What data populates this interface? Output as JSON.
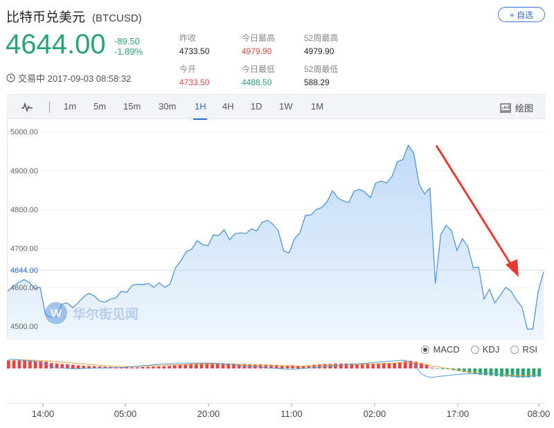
{
  "header": {
    "name": "比特币兑美元",
    "symbol": "(BTCUSD)",
    "add_button": "+ 自选"
  },
  "quote": {
    "price": "4644.00",
    "change": "-89.50",
    "change_pct": "-1.89%"
  },
  "stats": [
    {
      "label": "昨收",
      "value": "4733.50",
      "tone": "dark"
    },
    {
      "label": "今日最高",
      "value": "4979.90",
      "tone": "red"
    },
    {
      "label": "52周最高",
      "value": "4979.90",
      "tone": "dark"
    },
    {
      "label": "今开",
      "value": "4733.50",
      "tone": "red"
    },
    {
      "label": "今日最低",
      "value": "4488.50",
      "tone": "green"
    },
    {
      "label": "52周最低",
      "value": "588.29",
      "tone": "dark"
    }
  ],
  "status": {
    "text": "交易中 2017-09-03 08:58:32"
  },
  "toolbar": {
    "tabs": [
      "1m",
      "5m",
      "15m",
      "30m",
      "1H",
      "4H",
      "1D",
      "1W",
      "1M"
    ],
    "active": "1H",
    "draw_label": "绘图"
  },
  "indicators": {
    "options": [
      "MACD",
      "KDJ",
      "RSI"
    ],
    "selected": "MACD"
  },
  "watermark": "华尔街见闻",
  "colors": {
    "line": "#3f8fdc",
    "up": "#e94444",
    "down": "#27a673",
    "price": "#27a673",
    "arrow": "#e83a30"
  },
  "chart_data": {
    "type": "area",
    "ylim": [
      4470,
      5025
    ],
    "y_ticks": [
      "5000.00",
      "4900.00",
      "4800.00",
      "4700.00",
      "4600.00",
      "4500.00"
    ],
    "current_price_label": "4644.00",
    "x_ticks": [
      "14:00",
      "05:00",
      "20:00",
      "11:00",
      "02:00",
      "17:00",
      "08:00"
    ],
    "values": [
      4590,
      4602,
      4612,
      4620,
      4613,
      4597,
      4600,
      4530,
      4523,
      4524,
      4557,
      4560,
      4548,
      4560,
      4575,
      4585,
      4578,
      4565,
      4562,
      4570,
      4573,
      4590,
      4587,
      4605,
      4608,
      4607,
      4610,
      4600,
      4612,
      4600,
      4608,
      4650,
      4668,
      4692,
      4698,
      4720,
      4710,
      4707,
      4735,
      4733,
      4748,
      4722,
      4738,
      4740,
      4738,
      4750,
      4745,
      4767,
      4772,
      4762,
      4745,
      4693,
      4688,
      4725,
      4740,
      4785,
      4786,
      4800,
      4805,
      4820,
      4848,
      4830,
      4822,
      4818,
      4847,
      4852,
      4845,
      4830,
      4868,
      4873,
      4868,
      4885,
      4923,
      4928,
      4965,
      4945,
      4865,
      4840,
      4855,
      4610,
      4735,
      4760,
      4745,
      4695,
      4725,
      4705,
      4650,
      4652,
      4570,
      4595,
      4560,
      4580,
      4600,
      4590,
      4567,
      4550,
      4493,
      4493,
      4590,
      4640
    ],
    "macd_bars": [
      0.9,
      0.9,
      0.9,
      0.9,
      0.9,
      0.8,
      0.8,
      0.75,
      0.6,
      0.55,
      0.5,
      0.45,
      0.4,
      0.35,
      0.3,
      0.28,
      0.25,
      0.22,
      0.2,
      0.18,
      0.15,
      0.14,
      0.12,
      0.12,
      0.12,
      0.15,
      0.18,
      0.2,
      0.22,
      0.25,
      0.28,
      0.35,
      0.4,
      0.45,
      0.5,
      0.55,
      0.6,
      0.62,
      0.6,
      0.6,
      0.58,
      0.55,
      0.55,
      0.5,
      0.5,
      0.48,
      0.45,
      0.45,
      0.42,
      0.4,
      0.38,
      0.35,
      0.35,
      0.35,
      0.3,
      0.3,
      0.35,
      0.4,
      0.45,
      0.5,
      0.5,
      0.55,
      0.55,
      0.55,
      0.55,
      0.5,
      0.55,
      0.55,
      0.55,
      0.55,
      0.6,
      0.6,
      0.6,
      0.7,
      0.8,
      0.85,
      0.75,
      0.6,
      0.4,
      0.1,
      -0.05,
      -0.08,
      -0.1,
      -0.2,
      -0.3,
      -0.4,
      -0.5,
      -0.6,
      -0.7,
      -0.75,
      -0.8,
      -0.85,
      -0.9,
      -0.9,
      -0.95,
      -1.0,
      -1.0,
      -1.0,
      -0.95,
      -0.9
    ],
    "dif": [
      1.0,
      1.0,
      0.95,
      0.9,
      0.85,
      0.8,
      0.6,
      0.4,
      0.2,
      0.1,
      0.05,
      0.0,
      -0.05,
      -0.05,
      0.0,
      0.0,
      0.05,
      0.05,
      0.05,
      0.1,
      0.1,
      0.1,
      0.15,
      0.2,
      0.25,
      0.3,
      0.35,
      0.4,
      0.45,
      0.5,
      0.5,
      0.55,
      0.6,
      0.6,
      0.6,
      0.6,
      0.6,
      0.6,
      0.6,
      0.55,
      0.5,
      0.45,
      0.4,
      0.3,
      0.25,
      0.2,
      0.2,
      0.15,
      0.1,
      0.05,
      0.0,
      -0.05,
      -0.1,
      -0.1,
      -0.05,
      0.0,
      0.05,
      0.1,
      0.15,
      0.2,
      0.25,
      0.3,
      0.35,
      0.4,
      0.45,
      0.5,
      0.55,
      0.6,
      0.65,
      0.7,
      0.75,
      0.8,
      0.85,
      0.9,
      0.9,
      0.7,
      0.3,
      -0.6,
      -0.9,
      -1.0,
      -0.9,
      -0.85,
      -0.8,
      -0.7,
      -0.65,
      -0.6,
      -0.6,
      -0.6,
      -0.55,
      -0.55,
      -0.6,
      -0.6,
      -0.7,
      -0.8,
      -0.85,
      -0.9,
      -0.9,
      -0.9,
      -0.8,
      -0.7
    ],
    "dea": [
      1.0,
      0.98,
      0.96,
      0.94,
      0.92,
      0.9,
      0.88,
      0.85,
      0.8,
      0.75,
      0.7,
      0.65,
      0.6,
      0.55,
      0.5,
      0.45,
      0.4,
      0.35,
      0.3,
      0.28,
      0.25,
      0.22,
      0.2,
      0.2,
      0.22,
      0.25,
      0.28,
      0.3,
      0.32,
      0.35,
      0.38,
      0.4,
      0.42,
      0.45,
      0.48,
      0.5,
      0.5,
      0.5,
      0.5,
      0.5,
      0.5,
      0.48,
      0.45,
      0.42,
      0.4,
      0.38,
      0.36,
      0.34,
      0.32,
      0.3,
      0.28,
      0.26,
      0.25,
      0.24,
      0.24,
      0.25,
      0.26,
      0.28,
      0.3,
      0.32,
      0.34,
      0.36,
      0.38,
      0.4,
      0.42,
      0.44,
      0.46,
      0.48,
      0.5,
      0.52,
      0.55,
      0.58,
      0.6,
      0.62,
      0.64,
      0.64,
      0.62,
      0.55,
      0.45,
      0.3,
      0.2,
      0.1,
      0.0,
      -0.1,
      -0.2,
      -0.3,
      -0.4,
      -0.45,
      -0.5,
      -0.55,
      -0.6,
      -0.65,
      -0.7,
      -0.72,
      -0.75,
      -0.8,
      -0.8,
      -0.8,
      -0.78,
      -0.75
    ]
  }
}
